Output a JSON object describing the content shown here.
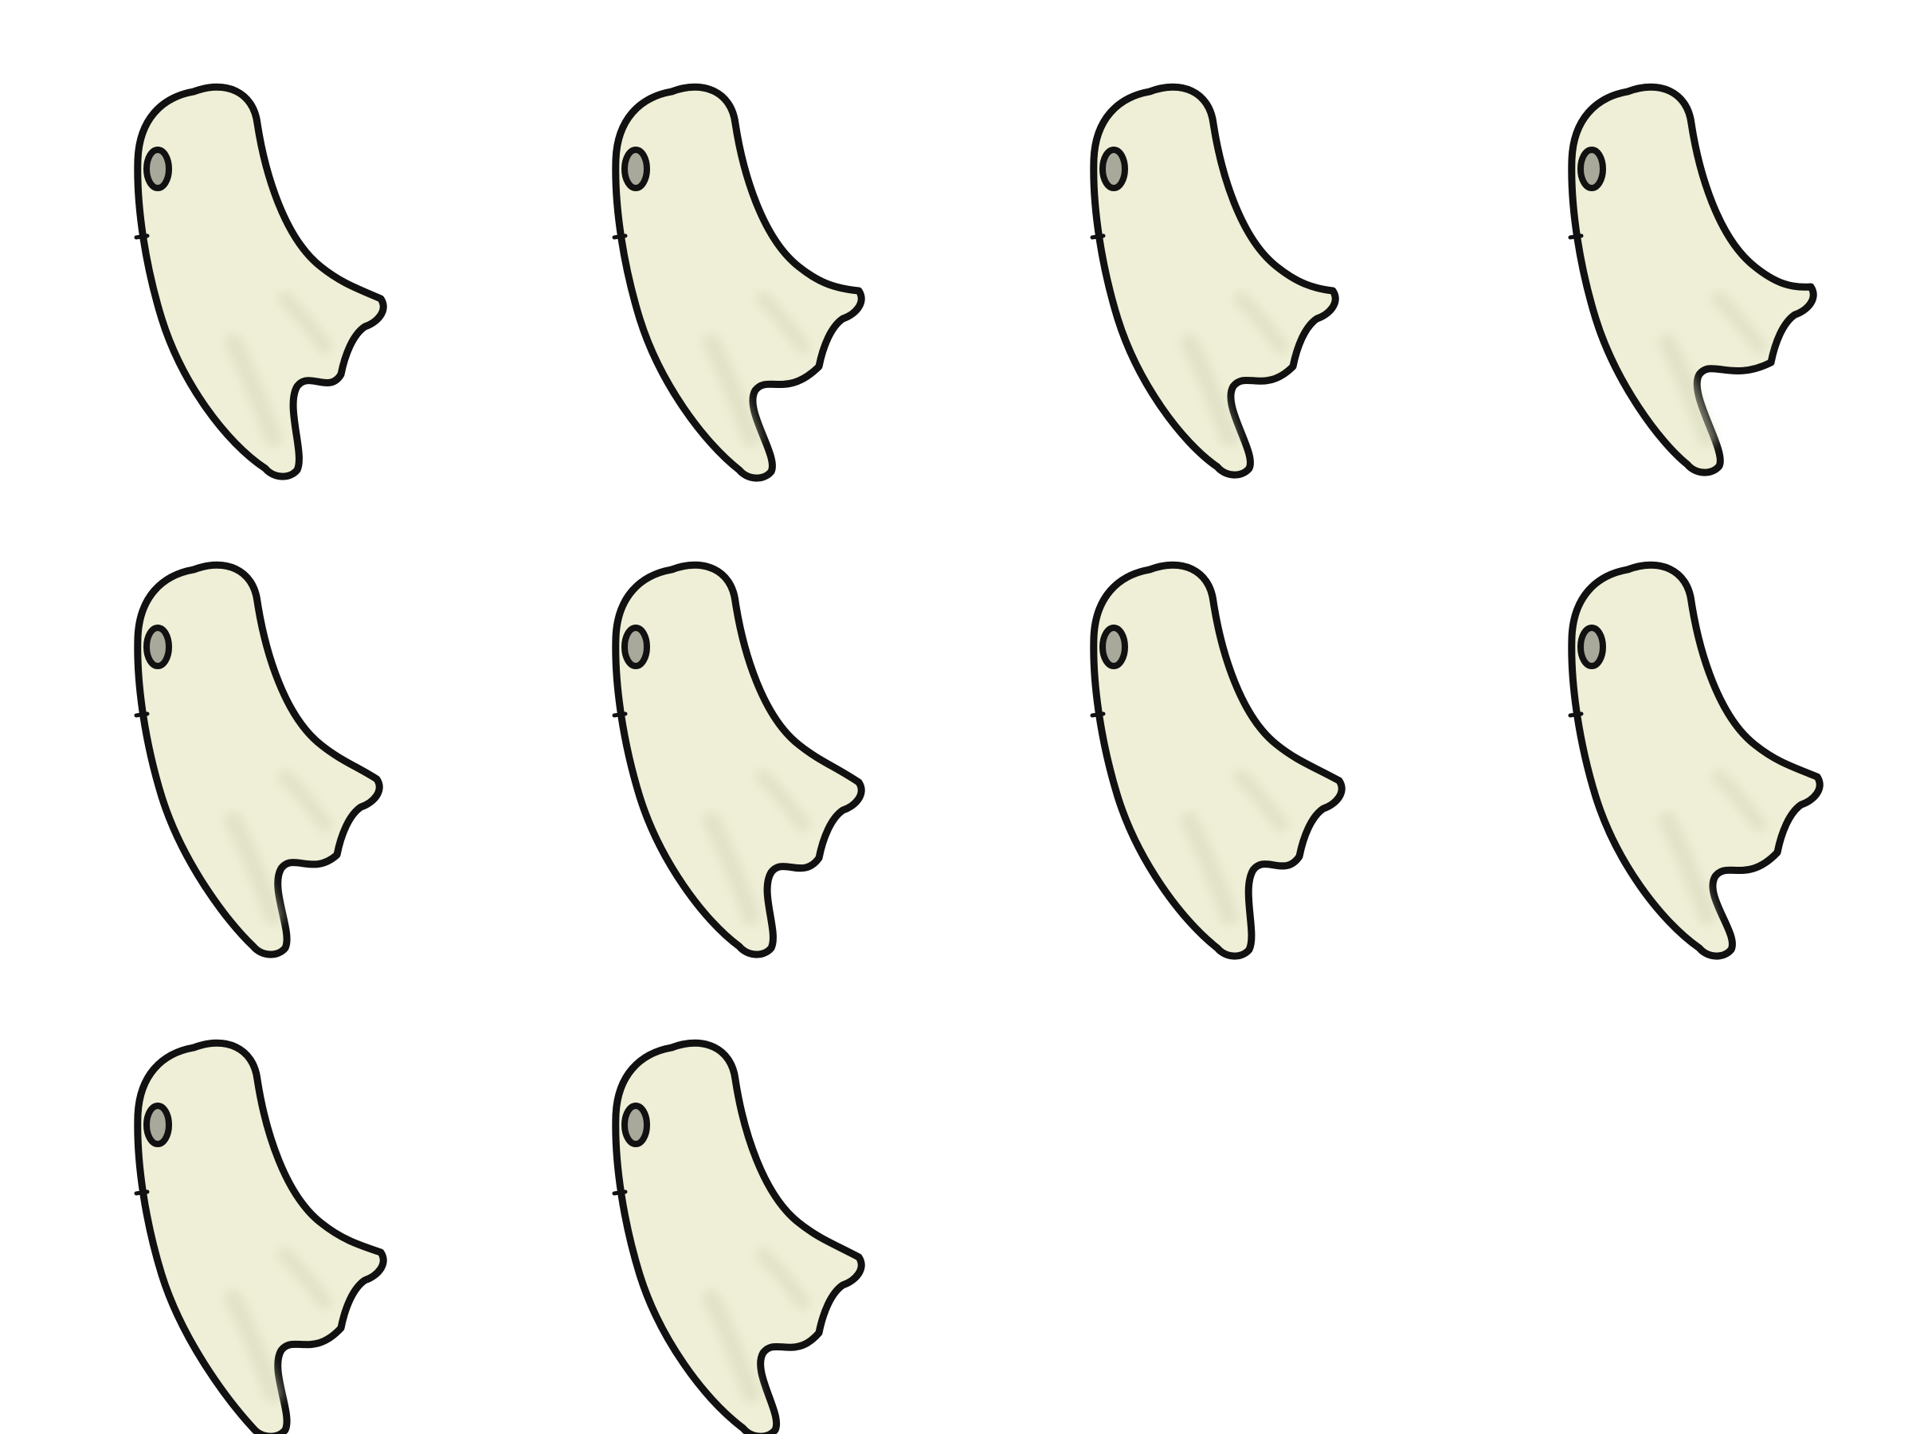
{
  "sprite_sheet": {
    "subject": "ghost",
    "frame_count": 10,
    "columns": 4,
    "rows": 3,
    "colors": {
      "background": "#ffffff",
      "body_fill": "#eeefd6",
      "body_shade": "#d7d8bc",
      "outline": "#111111",
      "eye_fill": "#a8a99a"
    },
    "frames": [
      {
        "frame": 1,
        "tail_variant": 0
      },
      {
        "frame": 2,
        "tail_variant": 1
      },
      {
        "frame": 3,
        "tail_variant": 2
      },
      {
        "frame": 4,
        "tail_variant": 3
      },
      {
        "frame": 5,
        "tail_variant": 4
      },
      {
        "frame": 6,
        "tail_variant": 5
      },
      {
        "frame": 7,
        "tail_variant": 6
      },
      {
        "frame": 8,
        "tail_variant": 7
      },
      {
        "frame": 9,
        "tail_variant": 8
      },
      {
        "frame": 10,
        "tail_variant": 9
      }
    ]
  }
}
